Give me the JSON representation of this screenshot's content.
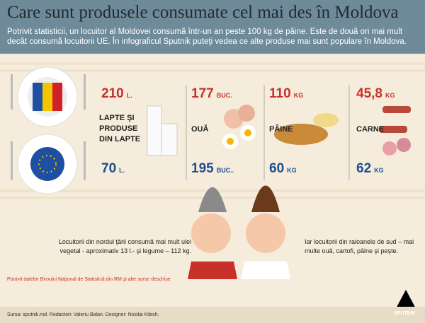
{
  "header": {
    "title": "Care sunt produsele consumate cel mai des în Moldova",
    "subtitle": "Potrivit statisticii, un locuitor al Moldovei consumă într-un an peste 100 kg de pâine. Este de două ori mai mult decât consumă locuitorii UE. În infograficul Sputnik puteţi vedea ce alte produse mai sunt populare în Moldova."
  },
  "products": [
    {
      "label": "LAPTE ŞI PRODUSE DIN LAPTE",
      "moldova": {
        "value": "210",
        "unit": "L."
      },
      "eu": {
        "value": "70",
        "unit": "L."
      }
    },
    {
      "label": "OUĂ",
      "moldova": {
        "value": "177",
        "unit": "BUC."
      },
      "eu": {
        "value": "195",
        "unit": "BUC.."
      }
    },
    {
      "label": "PÂINE",
      "moldova": {
        "value": "110",
        "unit": "KG"
      },
      "eu": {
        "value": "60",
        "unit": "KG"
      }
    },
    {
      "label": "CARNE",
      "moldova": {
        "value": "45,8",
        "unit": "KG"
      },
      "eu": {
        "value": "62",
        "unit": "KG"
      }
    }
  ],
  "notes": {
    "north": "Locuitorii din nordul ţării consumă mai mult ulei vegetal - aproximativ 13 l.- şi legume – 112 kg.",
    "south": "Iar locuitorii din raioanele de sud – mai multe ouă, cartofi, pâine şi peşte.",
    "source": "Potrivit datelor Biroului Naţional de Statistică din RM şi alte surse deschise"
  },
  "footer": {
    "credits": "Sursa: sputnik.md. Redactori: Valeriu Balan. Designer: Nicolai Kibich.",
    "logo": "SPUTNIK"
  }
}
